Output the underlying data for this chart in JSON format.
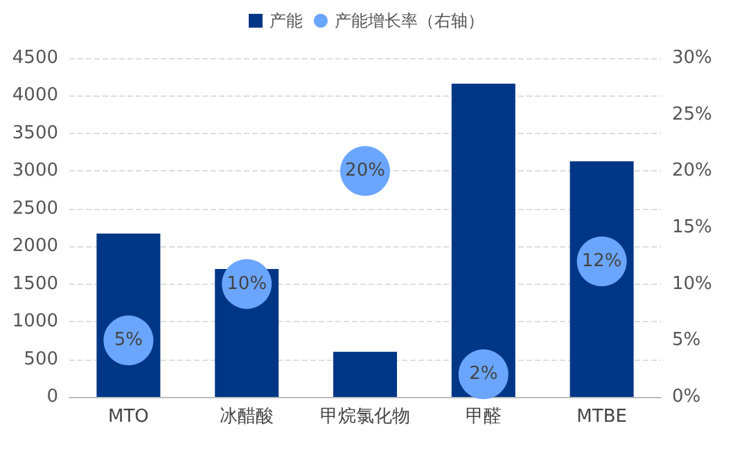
{
  "chart_data": {
    "type": "bar",
    "categories": [
      "MTO",
      "冰醋酸",
      "甲烷氯化物",
      "甲醛",
      "MTBE"
    ],
    "series": [
      {
        "name": "产能",
        "color": "#003686",
        "values": [
          2170,
          1700,
          600,
          4160,
          3130
        ]
      },
      {
        "name": "产能增长率（右轴）",
        "type": "scatter",
        "axis": "y2",
        "color": "#6aa6ff",
        "marker": "circle",
        "values": [
          5,
          10,
          20,
          2,
          12
        ],
        "value_labels": [
          "5%",
          "10%",
          "20%",
          "2%",
          "12%"
        ]
      }
    ],
    "ylim": [
      0,
      4500
    ],
    "yticks": [
      0,
      500,
      1000,
      1500,
      2000,
      2500,
      3000,
      3500,
      4000,
      4500
    ],
    "y2lim": [
      0,
      30
    ],
    "y2ticks": [
      {
        "value": 0,
        "label": "0%"
      },
      {
        "value": 5,
        "label": "5%"
      },
      {
        "value": 10,
        "label": "10%"
      },
      {
        "value": 15,
        "label": "15%"
      },
      {
        "value": 20,
        "label": "20%"
      },
      {
        "value": 25,
        "label": "25%"
      },
      {
        "value": 30,
        "label": "30%"
      }
    ],
    "grid": "y",
    "legend": "top"
  }
}
